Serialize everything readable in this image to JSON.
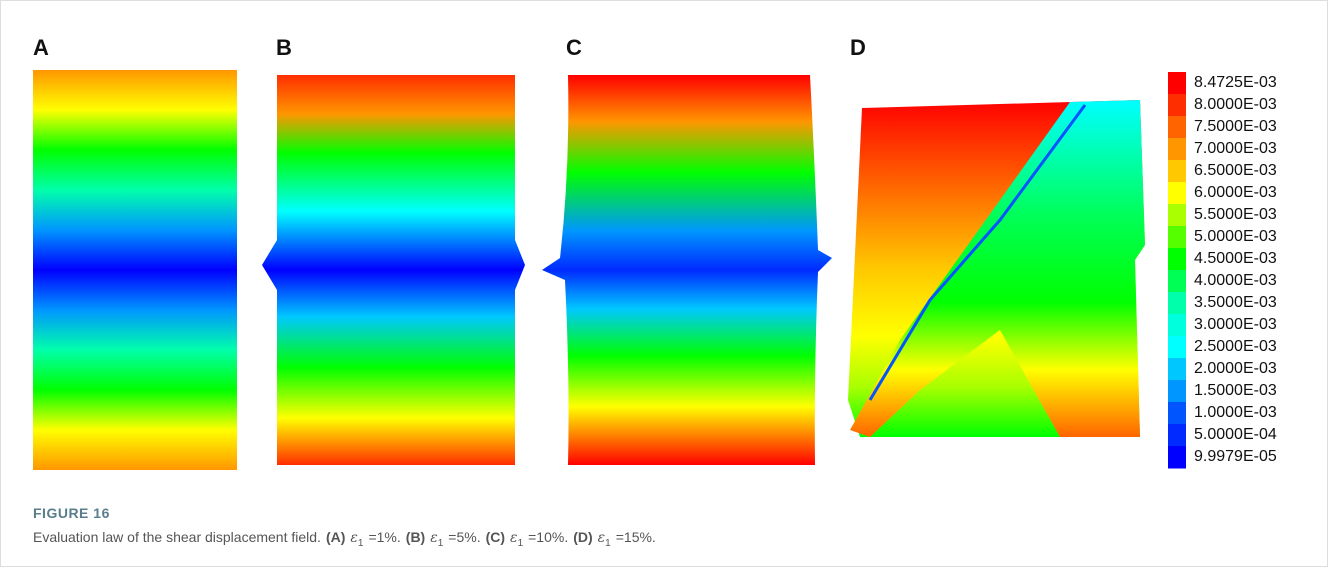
{
  "panels": [
    {
      "label": "A"
    },
    {
      "label": "B"
    },
    {
      "label": "C"
    },
    {
      "label": "D"
    }
  ],
  "legend": [
    {
      "label": "8.4725E-03",
      "color": "#ff0000"
    },
    {
      "label": "8.0000E-03",
      "color": "#ff2e00"
    },
    {
      "label": "7.5000E-03",
      "color": "#ff6400"
    },
    {
      "label": "7.0000E-03",
      "color": "#ff9600"
    },
    {
      "label": "6.5000E-03",
      "color": "#ffc800"
    },
    {
      "label": "6.0000E-03",
      "color": "#ffff00"
    },
    {
      "label": "5.5000E-03",
      "color": "#aaff00"
    },
    {
      "label": "5.0000E-03",
      "color": "#55ff00"
    },
    {
      "label": "4.5000E-03",
      "color": "#00ff00"
    },
    {
      "label": "4.0000E-03",
      "color": "#00ff55"
    },
    {
      "label": "3.5000E-03",
      "color": "#00ffaa"
    },
    {
      "label": "3.0000E-03",
      "color": "#00ffdd"
    },
    {
      "label": "2.5000E-03",
      "color": "#00ffff"
    },
    {
      "label": "2.0000E-03",
      "color": "#00c8ff"
    },
    {
      "label": "1.5000E-03",
      "color": "#0096ff"
    },
    {
      "label": "1.0000E-03",
      "color": "#0055ff"
    },
    {
      "label": "5.0000E-04",
      "color": "#002aff"
    },
    {
      "label": "9.9979E-05",
      "color": "#0000ff"
    }
  ],
  "caption": {
    "figure": "FIGURE 16",
    "text": "Evaluation law of the shear displacement field.",
    "items": [
      {
        "label": "(A)",
        "symbol": "ε",
        "subscript": "1",
        "value": "=1%."
      },
      {
        "label": "(B)",
        "symbol": "ε",
        "subscript": "1",
        "value": "=5%."
      },
      {
        "label": "(C)",
        "symbol": "ε",
        "subscript": "1",
        "value": "=10%."
      },
      {
        "label": "(D)",
        "symbol": "ε",
        "subscript": "1",
        "value": "=15%."
      }
    ]
  }
}
